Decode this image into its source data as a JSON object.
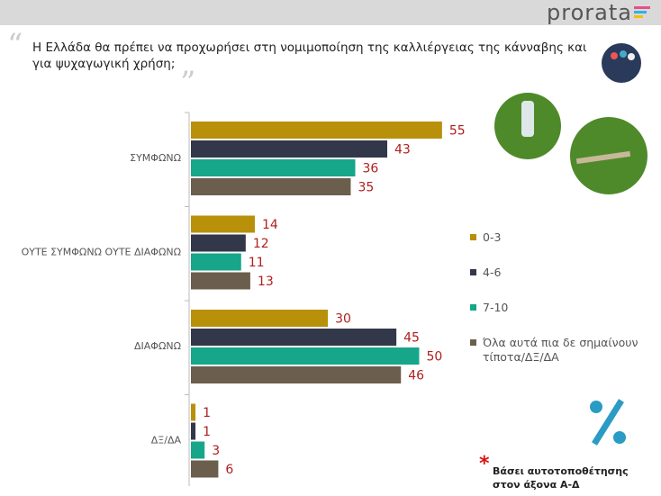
{
  "brand": "prorata",
  "chart_data": {
    "type": "hbar",
    "title": "Η Ελλάδα θα πρέπει να προχωρήσει στη νομιμοποίηση της καλλιέργειας της κάνναβης και για ψυχαγωγική χρήση;",
    "categories": [
      "ΣΥΜΦΩΝΩ",
      "ΟΥΤΕ ΣΥΜΦΩΝΩ ΟΥΤΕ ΔΙΑΦΩΝΩ",
      "ΔΙΑΦΩΝΩ",
      "ΔΞ/ΔΑ"
    ],
    "series": [
      {
        "name": "0-3",
        "color": "#b8900a",
        "values": [
          55,
          14,
          30,
          1
        ]
      },
      {
        "name": "4-6",
        "color": "#33374a",
        "values": [
          43,
          12,
          45,
          1
        ]
      },
      {
        "name": "7-10",
        "color": "#17a68a",
        "values": [
          36,
          11,
          50,
          3
        ]
      },
      {
        "name": "Όλα αυτά πια δε σημαίνουν τίποτα/ΔΞ/ΔΑ",
        "color": "#6b5e4c",
        "values": [
          35,
          13,
          46,
          6
        ]
      }
    ],
    "footnote": "Βάσει αυτοτοποθέτησης στον άξονα Α-Δ"
  }
}
